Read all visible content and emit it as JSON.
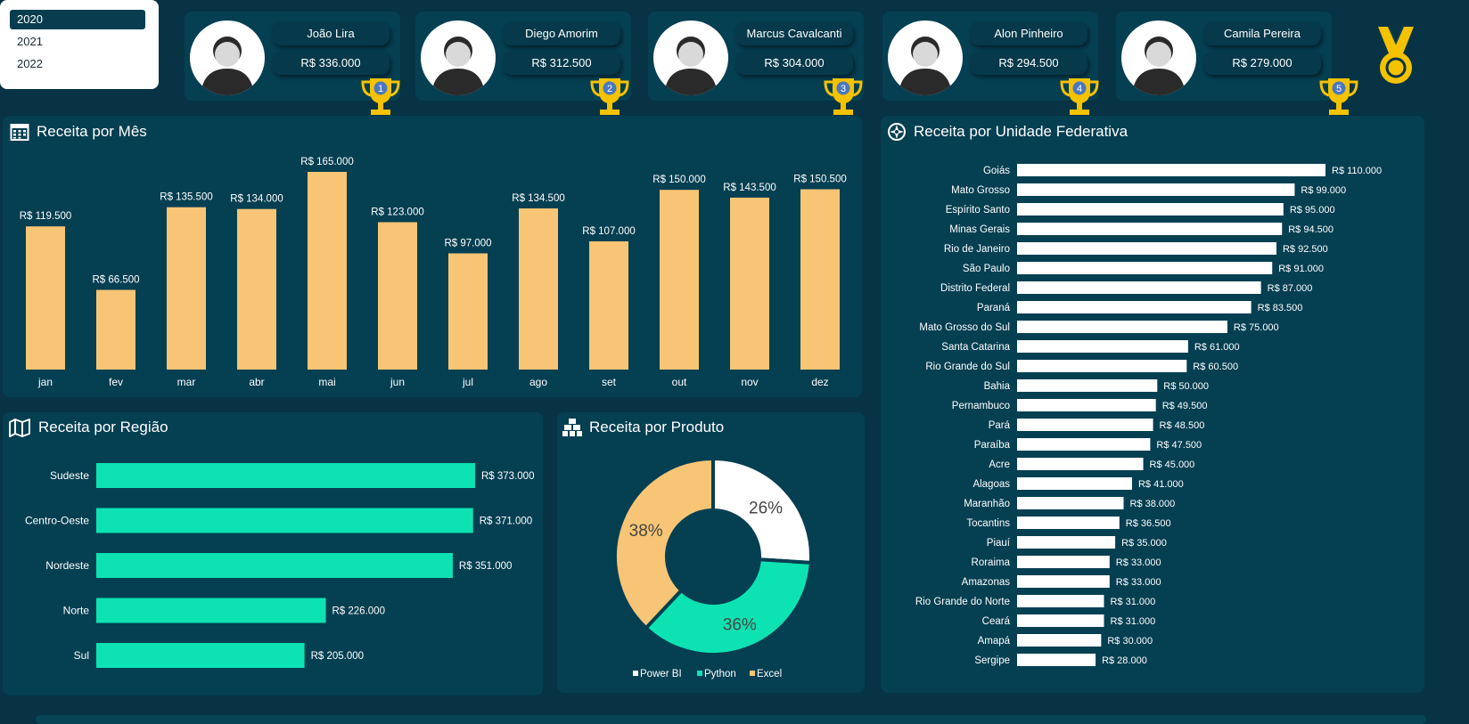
{
  "year_filter": {
    "years": [
      "2020",
      "2021",
      "2022"
    ],
    "selected": "2020"
  },
  "sellers": [
    {
      "rank": "1",
      "name": "João Lira",
      "value": "R$ 336.000"
    },
    {
      "rank": "2",
      "name": "Diego Amorim",
      "value": "R$ 312.500"
    },
    {
      "rank": "3",
      "name": "Marcus Cavalcanti",
      "value": "R$ 304.000"
    },
    {
      "rank": "4",
      "name": "Alon Pinheiro",
      "value": "R$ 294.500"
    },
    {
      "rank": "5",
      "name": "Camila Pereira",
      "value": "R$ 279.000"
    }
  ],
  "colors": {
    "background": "#073344",
    "panel": "#053f52",
    "month_bar": "#f7c575",
    "region_bar": "#0de3b2",
    "uf_bar": "#ffffff",
    "trophy": "#f5c200",
    "rank_badge": "#4a78c0",
    "pie_power_bi": "#ffffff",
    "pie_python": "#0de3b2",
    "pie_excel": "#f7c575"
  },
  "icons": {
    "month": "calendar-icon",
    "uf": "compass-icon",
    "region": "map-icon",
    "product": "boxes-icon",
    "medal": "medal-icon",
    "trophy": "trophy-icon"
  },
  "panels": {
    "month_title": "Receita por Mês",
    "uf_title": "Receita por Unidade Federativa",
    "region_title": "Receita por Região",
    "product_title": "Receita por Produto"
  },
  "chart_data": [
    {
      "id": "month",
      "type": "bar",
      "title": "Receita por Mês",
      "categories": [
        "jan",
        "fev",
        "mar",
        "abr",
        "mai",
        "jun",
        "jul",
        "ago",
        "set",
        "out",
        "nov",
        "dez"
      ],
      "values": [
        119500,
        66500,
        135500,
        134000,
        165000,
        123000,
        97000,
        134500,
        107000,
        150000,
        143500,
        150500
      ],
      "labels": [
        "R$ 119.500",
        "R$ 66.500",
        "R$ 135.500",
        "R$ 134.000",
        "R$ 165.000",
        "R$ 123.000",
        "R$ 97.000",
        "R$ 134.500",
        "R$ 107.000",
        "R$ 150.000",
        "R$ 143.500",
        "R$ 150.500"
      ],
      "ylim": [
        0,
        165000
      ],
      "grid": false
    },
    {
      "id": "uf",
      "type": "bar",
      "orientation": "horizontal",
      "title": "Receita por Unidade Federativa",
      "categories": [
        "Goiás",
        "Mato Grosso",
        "Espírito Santo",
        "Minas Gerais",
        "Rio de Janeiro",
        "São Paulo",
        "Distrito Federal",
        "Paraná",
        "Mato Grosso do Sul",
        "Santa Catarina",
        "Rio Grande do Sul",
        "Bahia",
        "Pernambuco",
        "Pará",
        "Paraíba",
        "Acre",
        "Alagoas",
        "Maranhão",
        "Tocantins",
        "Piauí",
        "Roraima",
        "Amazonas",
        "Rio Grande do Norte",
        "Ceará",
        "Amapá",
        "Sergipe"
      ],
      "values": [
        110000,
        99000,
        95000,
        94500,
        92500,
        91000,
        87000,
        83500,
        75000,
        61000,
        60500,
        50000,
        49500,
        48500,
        47500,
        45000,
        41000,
        38000,
        36500,
        35000,
        33000,
        33000,
        31000,
        31000,
        30000,
        28000
      ],
      "labels": [
        "R$ 110.000",
        "R$ 99.000",
        "R$ 95.000",
        "R$ 94.500",
        "R$ 92.500",
        "R$ 91.000",
        "R$ 87.000",
        "R$ 83.500",
        "R$ 75.000",
        "R$ 61.000",
        "R$ 60.500",
        "R$ 50.000",
        "R$ 49.500",
        "R$ 48.500",
        "R$ 47.500",
        "R$ 45.000",
        "R$ 41.000",
        "R$ 38.000",
        "R$ 36.500",
        "R$ 35.000",
        "R$ 33.000",
        "R$ 33.000",
        "R$ 31.000",
        "R$ 31.000",
        "R$ 30.000",
        "R$ 28.000"
      ],
      "xlim": [
        0,
        110000
      ],
      "grid": false
    },
    {
      "id": "region",
      "type": "bar",
      "orientation": "horizontal",
      "title": "Receita por Região",
      "categories": [
        "Sudeste",
        "Centro-Oeste",
        "Nordeste",
        "Norte",
        "Sul"
      ],
      "values": [
        373000,
        371000,
        351000,
        226000,
        205000
      ],
      "labels": [
        "R$ 373.000",
        "R$ 371.000",
        "R$ 351.000",
        "R$ 226.000",
        "R$ 205.000"
      ],
      "xlim": [
        0,
        373000
      ],
      "grid": false
    },
    {
      "id": "product",
      "type": "pie",
      "donut": true,
      "title": "Receita por Produto",
      "categories": [
        "Power BI",
        "Python",
        "Excel"
      ],
      "values": [
        26,
        36,
        38
      ],
      "labels": [
        "26%",
        "36%",
        "38%"
      ],
      "legend": "bottom"
    }
  ]
}
